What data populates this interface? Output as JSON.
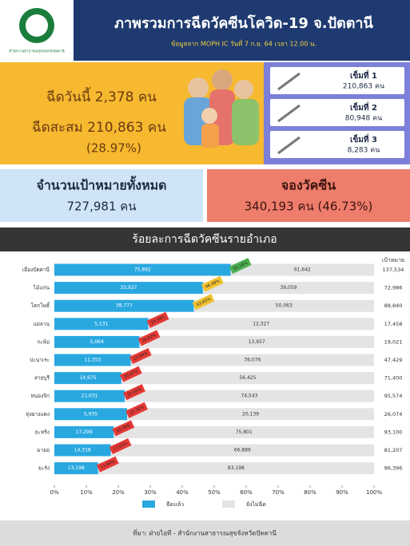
{
  "header": {
    "logo_text": "สำนักงานสาธารณสุขจังหวัดปัตตานี",
    "title": "ภาพรวมการฉีดวัคซีนโควิด-19 จ.ปัตตานี",
    "subtitle": "ข้อมูลจาก MOPH IC วันที่ 7 ก.ย. 64 เวลา 12.00 น."
  },
  "today": "ฉีดวันนี้ 2,378 คน",
  "cumulative": "ฉีดสะสม 210,863 คน",
  "cumulative_pct": "(28.97%)",
  "doses": [
    {
      "label": "เข็มที่ 1",
      "value": "210,863 คน"
    },
    {
      "label": "เข็มที่ 2",
      "value": "80,948 คน"
    },
    {
      "label": "เข็มที่ 3",
      "value": "8,283 คน"
    }
  ],
  "target": {
    "label": "จำนวนเป้าหมายทั้งหมด",
    "value": "727,981 คน"
  },
  "booking": {
    "label": "จองวัคซีน",
    "value": "340,193 คน (46.73%)"
  },
  "section_title": "ร้อยละการฉีดวัคซีนรายอำเภอ",
  "footer": "ที่มา: ฝ่ายไอที  -  สำนักงานสาธารณสุขจังหวัดปัตตานี",
  "chart_data": {
    "type": "stacked_barh",
    "categories": [
      "เมืองปัตตานี",
      "ไม้แก่น",
      "โคกโพธิ์",
      "แม่ลาน",
      "กะพ้อ",
      "ปะนาเระ",
      "สายบุรี",
      "หนองจิก",
      "ทุ่งยางแดง",
      "ยะหริ่ง",
      "มายอ",
      "ยะรัง"
    ],
    "series": [
      {
        "name": "ฉีดแล้ว",
        "color": "#29a8e0",
        "values": [
          55.18,
          46.48,
          43.65,
          29.39,
          26.62,
          23.94,
          20.97,
          22.0,
          22.76,
          18.58,
          17.63,
          13.69
        ],
        "value_labels": [
          "55.18%",
          "46.48%",
          "43.65%",
          "29.39%",
          "26.62%",
          "23.94%",
          "20.97%",
          "22.00%",
          "22.76%",
          "18.58%",
          "17.63%",
          "13.69%"
        ],
        "counts": [
          "75,892",
          "33,927",
          "38,777",
          "5,131",
          "5,064",
          "11,353",
          "14,975",
          "21,031",
          "5,935",
          "17,299",
          "14,318",
          "13,198"
        ]
      },
      {
        "name": "ยังไม่ฉีด",
        "color": "#e4e4e4",
        "values": [
          44.82,
          53.52,
          56.35,
          70.61,
          73.38,
          76.06,
          79.03,
          78.0,
          77.24,
          81.42,
          82.37,
          86.31
        ],
        "counts": [
          "61,642",
          "39,059",
          "50,063",
          "12,327",
          "13,957",
          "36,076",
          "56,425",
          "74,543",
          "20,139",
          "75,801",
          "66,889",
          "83,198"
        ]
      }
    ],
    "tag_colors": [
      "#4caf50",
      "#f2c230",
      "#f2c230",
      "#e53935",
      "#e53935",
      "#e53935",
      "#e53935",
      "#e53935",
      "#e53935",
      "#e53935",
      "#e53935",
      "#e53935"
    ],
    "target_header": "เป้าหมาย",
    "targets": [
      "137,534",
      "72,986",
      "88,840",
      "17,458",
      "19,021",
      "47,429",
      "71,400",
      "95,574",
      "26,074",
      "93,100",
      "81,207",
      "96,396"
    ],
    "xlim": [
      0,
      100
    ],
    "xticks": [
      {
        "value": 0,
        "label": "0%"
      },
      {
        "value": 10,
        "label": "10%"
      },
      {
        "value": 20,
        "label": "20%"
      },
      {
        "value": 30,
        "label": "30%"
      },
      {
        "value": 40,
        "label": "40%"
      },
      {
        "value": 50,
        "label": "50%"
      },
      {
        "value": 60,
        "label": "60%"
      },
      {
        "value": 70,
        "label": "70%"
      },
      {
        "value": 80,
        "label": "80%"
      },
      {
        "value": 90,
        "label": "90%"
      },
      {
        "value": 100,
        "label": "100%"
      }
    ]
  }
}
